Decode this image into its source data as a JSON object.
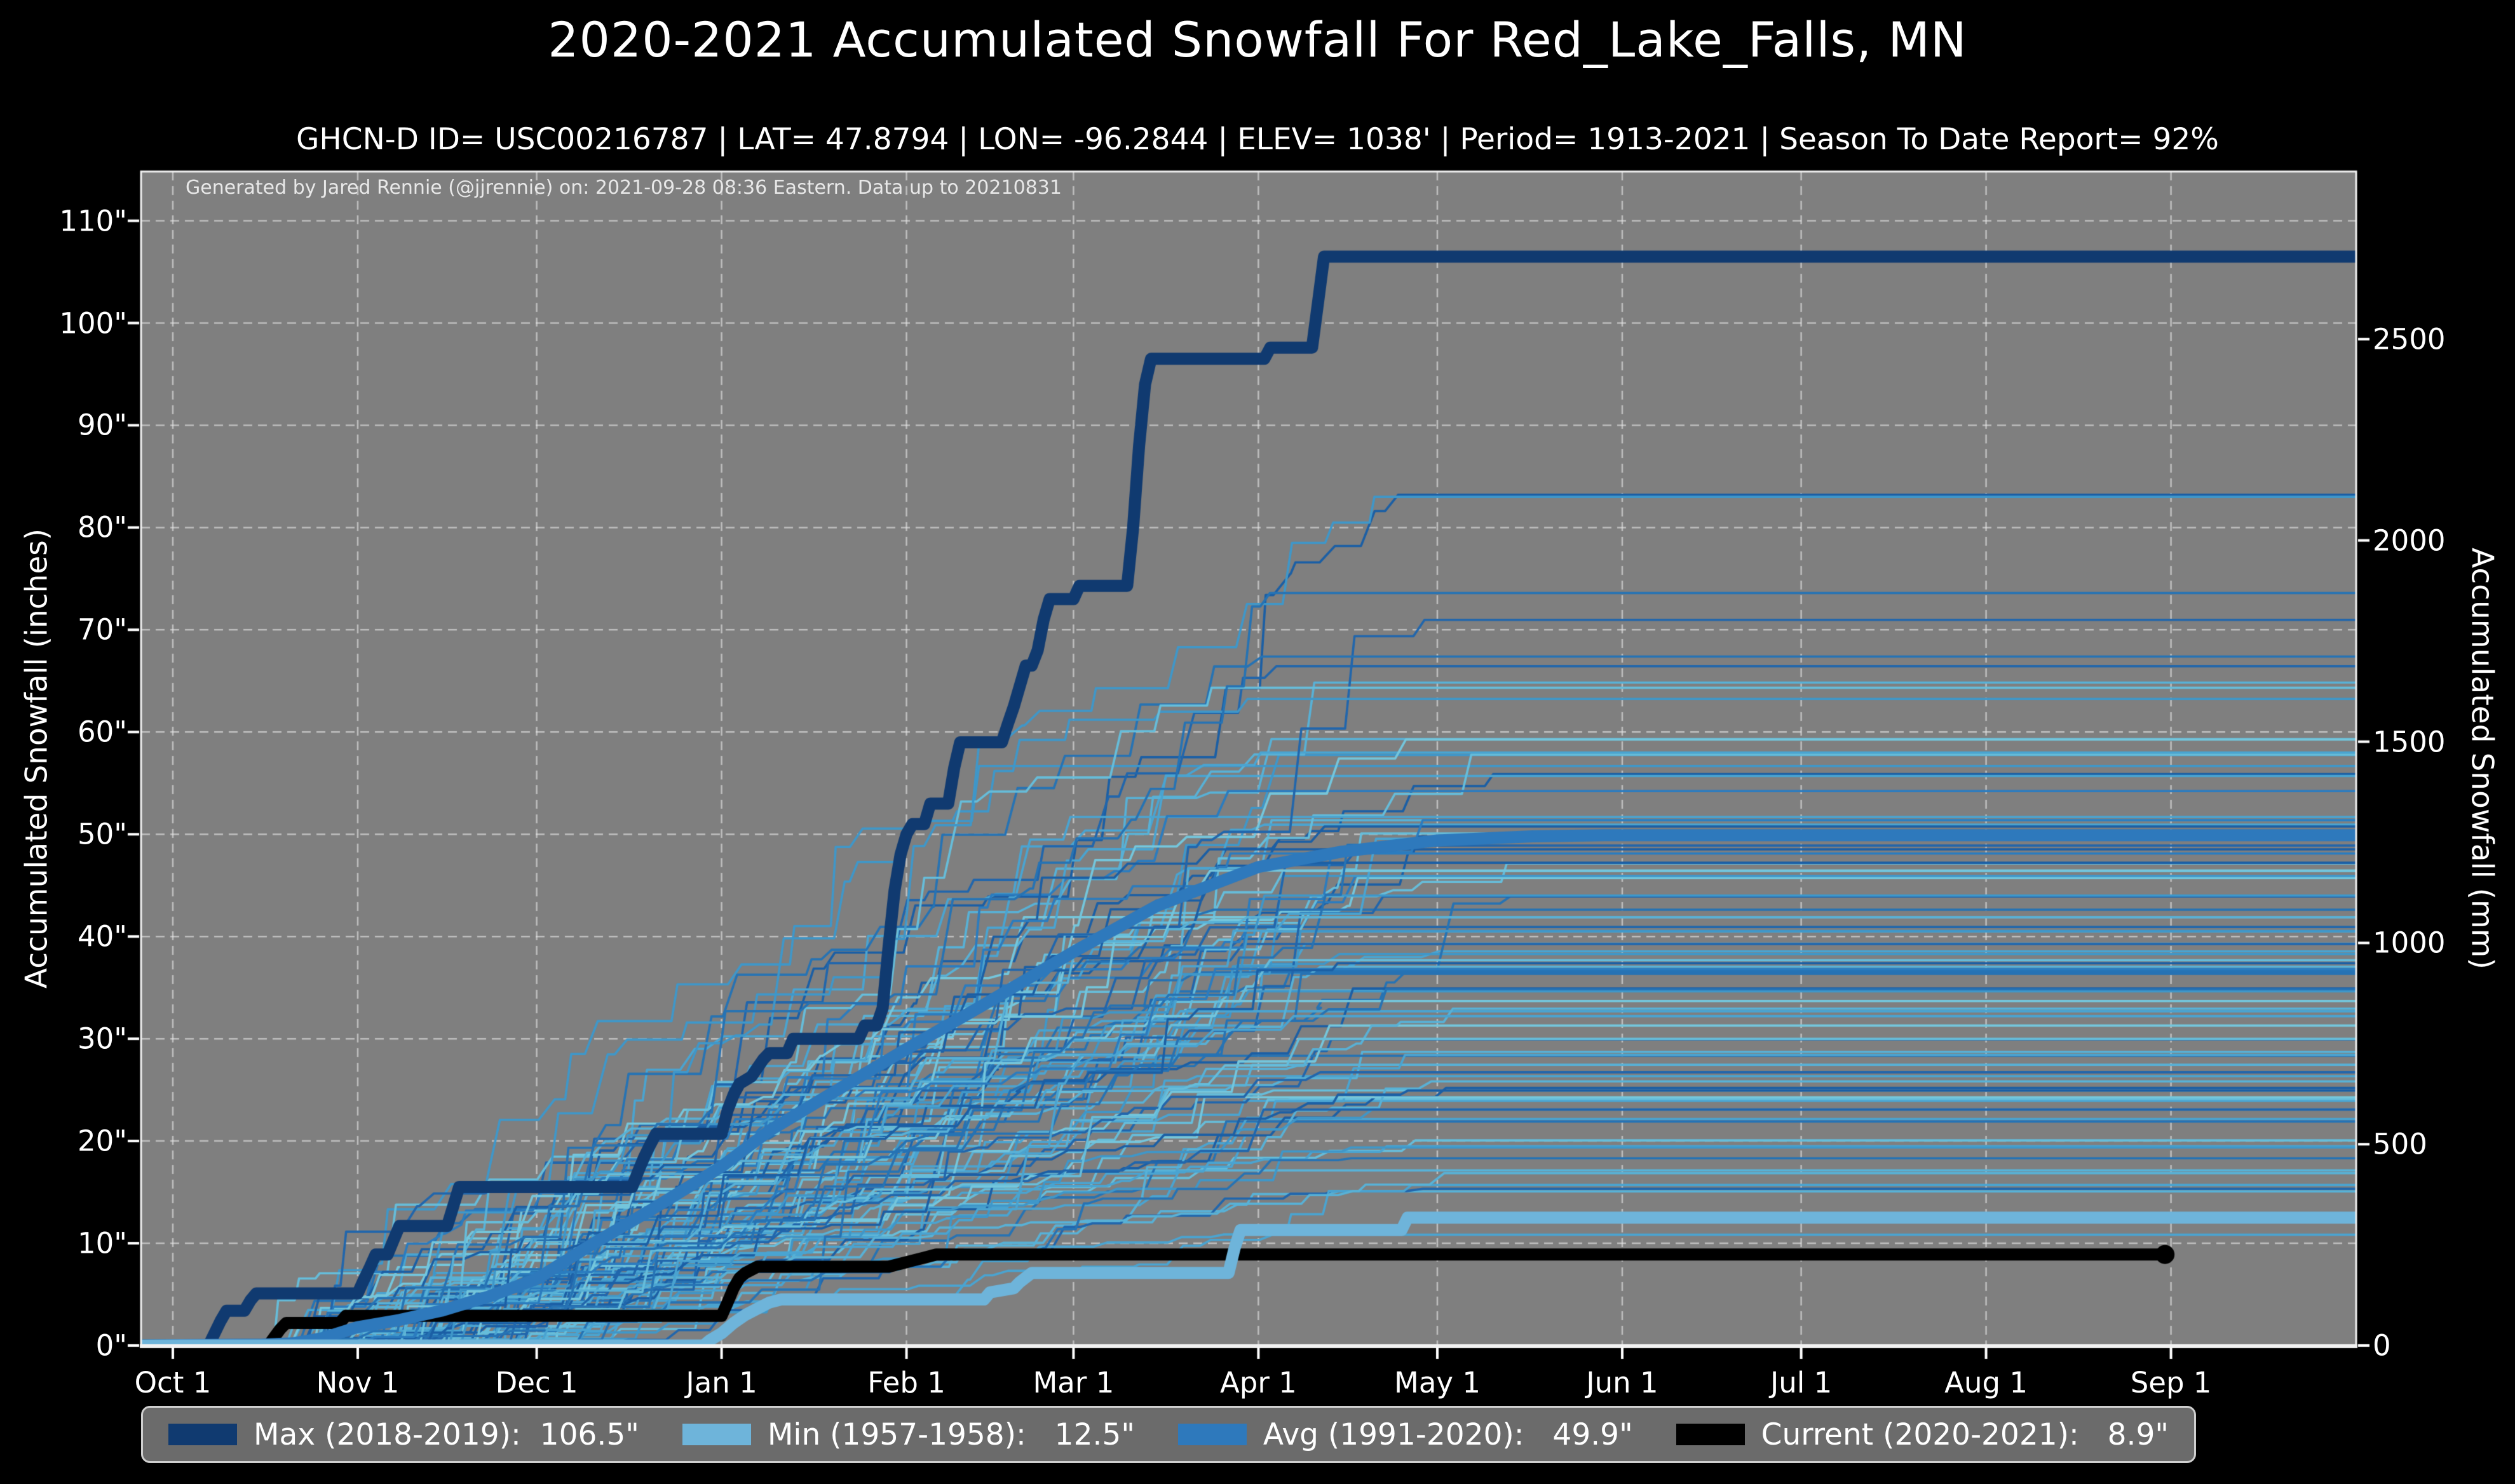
{
  "header": {
    "title": "2020-2021 Accumulated Snowfall For Red_Lake_Falls, MN",
    "subtitle": "GHCN-D ID= USC00216787 | LAT= 47.8794 | LON= -96.2844 | ELEV= 1038' | Period= 1913-2021 | Season To Date Report= 92%"
  },
  "annotation": "Generated by Jared Rennie (@jjrennie) on: 2021-09-28 08:36 Eastern. Data up to 20210831",
  "axes": {
    "left": {
      "label": "Accumulated Snowfall (inches)",
      "ticks": [
        "110\"",
        "100\"",
        "90\"",
        "80\"",
        "70\"",
        "60\"",
        "50\"",
        "40\"",
        "30\"",
        "20\"",
        "10\"",
        "0\""
      ],
      "values_inches": [
        110,
        100,
        90,
        80,
        70,
        60,
        50,
        40,
        30,
        20,
        10,
        0
      ]
    },
    "right": {
      "label": "Accumulated Snowfall (mm)",
      "ticks": [
        "2500",
        "2000",
        "1500",
        "1000",
        "500",
        "0"
      ],
      "values_mm": [
        2500,
        2000,
        1500,
        1000,
        500,
        0
      ]
    },
    "x": {
      "ticks": [
        "Oct 1",
        "Nov 1",
        "Dec 1",
        "Jan 1",
        "Feb 1",
        "Mar 1",
        "Apr 1",
        "May 1",
        "Jun 1",
        "Jul 1",
        "Aug 1",
        "Sep 1"
      ],
      "day_offsets": [
        0,
        31,
        61,
        92,
        123,
        151,
        182,
        212,
        243,
        273,
        304,
        335
      ]
    }
  },
  "legend": {
    "entries": [
      {
        "name": "max",
        "label": "Max (2018-2019):  106.5\"",
        "color": "#103a70"
      },
      {
        "name": "min",
        "label": "Min (1957-1958):   12.5\"",
        "color": "#6eb4da"
      },
      {
        "name": "avg",
        "label": "Avg (1991-2020):   49.9\"",
        "color": "#2e79bc"
      },
      {
        "name": "current",
        "label": "Current (2020-2021):   8.9\"",
        "color": "#000000"
      }
    ]
  },
  "chart_data": {
    "type": "line",
    "title": "2020-2021 Accumulated Snowfall For Red_Lake_Falls, MN",
    "xlabel": "",
    "ylabel_left": "Accumulated Snowfall (inches)",
    "ylabel_right": "Accumulated Snowfall (mm)",
    "x_range_days_from_oct1": [
      0,
      366
    ],
    "ylim_inches": [
      0,
      114.8
    ],
    "grid": "dashed",
    "colors": {
      "figure_bg": "#000000",
      "plot_bg": "#7f7f7f",
      "grid": "rgba(232,232,232,0.6)",
      "spine": "#f2f2f2",
      "tick": "#ffffff"
    },
    "series": [
      {
        "name": "Max (2018-2019)",
        "total_inches": 106.5,
        "color": "#103a70",
        "linewidth": 19,
        "points": [
          [
            -6,
            0
          ],
          [
            6,
            0
          ],
          [
            7,
            1.2
          ],
          [
            8,
            2.4
          ],
          [
            9,
            3.4
          ],
          [
            12,
            3.4
          ],
          [
            13,
            4.4
          ],
          [
            14,
            5.1
          ],
          [
            31,
            5.1
          ],
          [
            32,
            6.4
          ],
          [
            33,
            7.6
          ],
          [
            34,
            8.9
          ],
          [
            36,
            8.9
          ],
          [
            37,
            10.3
          ],
          [
            38,
            11.7
          ],
          [
            46,
            11.7
          ],
          [
            47,
            13.6
          ],
          [
            48,
            15.5
          ],
          [
            77,
            15.5
          ],
          [
            78,
            17.0
          ],
          [
            79,
            18.4
          ],
          [
            80,
            19.6
          ],
          [
            81,
            20.7
          ],
          [
            92,
            20.7
          ],
          [
            93,
            23.0
          ],
          [
            94,
            24.5
          ],
          [
            95,
            25.6
          ],
          [
            97,
            26.3
          ],
          [
            99,
            28.0
          ],
          [
            100,
            28.6
          ],
          [
            103,
            28.6
          ],
          [
            104,
            30.0
          ],
          [
            115,
            30.0
          ],
          [
            116,
            31.3
          ],
          [
            118,
            31.3
          ],
          [
            119,
            33.0
          ],
          [
            120,
            39.0
          ],
          [
            121,
            44.5
          ],
          [
            122,
            48.0
          ],
          [
            123,
            50.0
          ],
          [
            124,
            51.0
          ],
          [
            126,
            51.0
          ],
          [
            127,
            53.0
          ],
          [
            130,
            53.0
          ],
          [
            131,
            56.5
          ],
          [
            132,
            59.0
          ],
          [
            139,
            59.0
          ],
          [
            140,
            60.8
          ],
          [
            141,
            62.5
          ],
          [
            142,
            64.5
          ],
          [
            143,
            66.5
          ],
          [
            144,
            66.5
          ],
          [
            145,
            68.0
          ],
          [
            146,
            71.0
          ],
          [
            147,
            73.0
          ],
          [
            151,
            73.0
          ],
          [
            152,
            74.3
          ],
          [
            160,
            74.3
          ],
          [
            161,
            80.0
          ],
          [
            162,
            88.0
          ],
          [
            163,
            94.0
          ],
          [
            164,
            96.5
          ],
          [
            183,
            96.5
          ],
          [
            184,
            97.6
          ],
          [
            191,
            97.6
          ],
          [
            192,
            102.0
          ],
          [
            193,
            106.5
          ],
          [
            367,
            106.5
          ]
        ]
      },
      {
        "name": "Current (2020-2021)",
        "total_inches": 8.9,
        "color": "#000000",
        "linewidth": 19,
        "end_marker_day": 334,
        "end_marker_value": 8.9,
        "points": [
          [
            -6,
            0
          ],
          [
            16,
            0
          ],
          [
            17,
            0.8
          ],
          [
            18,
            1.6
          ],
          [
            19,
            2.2
          ],
          [
            28,
            2.2
          ],
          [
            29,
            2.9
          ],
          [
            92,
            2.9
          ],
          [
            93,
            4.2
          ],
          [
            94,
            5.6
          ],
          [
            95,
            6.6
          ],
          [
            96,
            7.1
          ],
          [
            98,
            7.7
          ],
          [
            120,
            7.7
          ],
          [
            122,
            8.0
          ],
          [
            124,
            8.3
          ],
          [
            126,
            8.6
          ],
          [
            128,
            8.9
          ],
          [
            334,
            8.9
          ]
        ]
      },
      {
        "name": "Avg (1991-2020)",
        "total_inches": 49.9,
        "color": "#2e79bc",
        "linewidth": 19,
        "smooth": true,
        "points": [
          [
            -6,
            0
          ],
          [
            15,
            0.1
          ],
          [
            20,
            0.2
          ],
          [
            25,
            0.7
          ],
          [
            31,
            1.8
          ],
          [
            38,
            2.5
          ],
          [
            45,
            3.4
          ],
          [
            53,
            4.8
          ],
          [
            61,
            6.5
          ],
          [
            70,
            9.8
          ],
          [
            80,
            13.2
          ],
          [
            92,
            17.5
          ],
          [
            100,
            21.0
          ],
          [
            110,
            24.5
          ],
          [
            123,
            29.0
          ],
          [
            135,
            33.0
          ],
          [
            151,
            38.5
          ],
          [
            165,
            43.0
          ],
          [
            182,
            46.8
          ],
          [
            196,
            48.3
          ],
          [
            212,
            49.4
          ],
          [
            228,
            49.8
          ],
          [
            240,
            49.9
          ],
          [
            367,
            49.9
          ]
        ]
      },
      {
        "name": "Min (1957-1958)",
        "total_inches": 12.5,
        "color": "#6eb4da",
        "linewidth": 19,
        "points": [
          [
            -6,
            0
          ],
          [
            89,
            0
          ],
          [
            90,
            0.5
          ],
          [
            92,
            1.2
          ],
          [
            94,
            2.2
          ],
          [
            96,
            3.0
          ],
          [
            98,
            3.6
          ],
          [
            100,
            4.2
          ],
          [
            102,
            4.5
          ],
          [
            136,
            4.5
          ],
          [
            137,
            5.2
          ],
          [
            141,
            5.6
          ],
          [
            142,
            6.2
          ],
          [
            144,
            7.1
          ],
          [
            177,
            7.1
          ],
          [
            178,
            9.5
          ],
          [
            179,
            11.3
          ],
          [
            206,
            11.3
          ],
          [
            207,
            12.5
          ],
          [
            367,
            12.5
          ]
        ]
      }
    ],
    "background_series": {
      "description": "All seasons 1913-2021 as thin step lines, season totals roughly 12-84 inches",
      "count": 95,
      "seed": 20210928,
      "palette": [
        "#1b5fa5",
        "#2166ac",
        "#2673b4",
        "#2b7cbf",
        "#3f97c9",
        "#4aa4d1",
        "#58b1d6",
        "#66bdda",
        "#74c6dc"
      ],
      "linewidth": 3.6
    }
  }
}
